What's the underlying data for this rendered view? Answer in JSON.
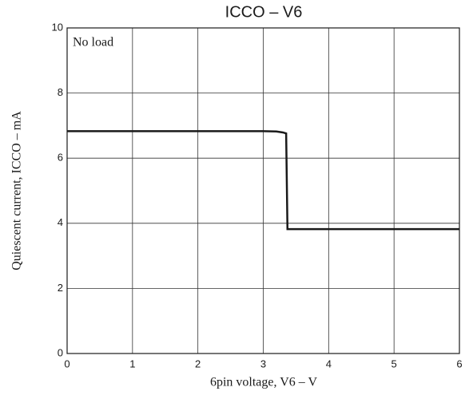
{
  "chart_data": {
    "type": "line",
    "title": "ICCO – V6",
    "xlabel": "6pin voltage, V6 – V",
    "ylabel": "Quiescent current, ICCO – mA",
    "annotation": "No load",
    "x": [
      0,
      3.0,
      3.2,
      3.3,
      3.35,
      3.37,
      6
    ],
    "series": [
      {
        "color": "#1a1a1a",
        "values": [
          6.83,
          6.83,
          6.82,
          6.79,
          6.76,
          3.82,
          3.82
        ]
      }
    ],
    "xlim": [
      0,
      6
    ],
    "xticks": [
      0,
      1,
      2,
      3,
      4,
      5,
      6
    ],
    "ylim": [
      0,
      10
    ],
    "yticks": [
      0,
      2,
      4,
      6,
      8,
      10
    ],
    "grid": true
  }
}
